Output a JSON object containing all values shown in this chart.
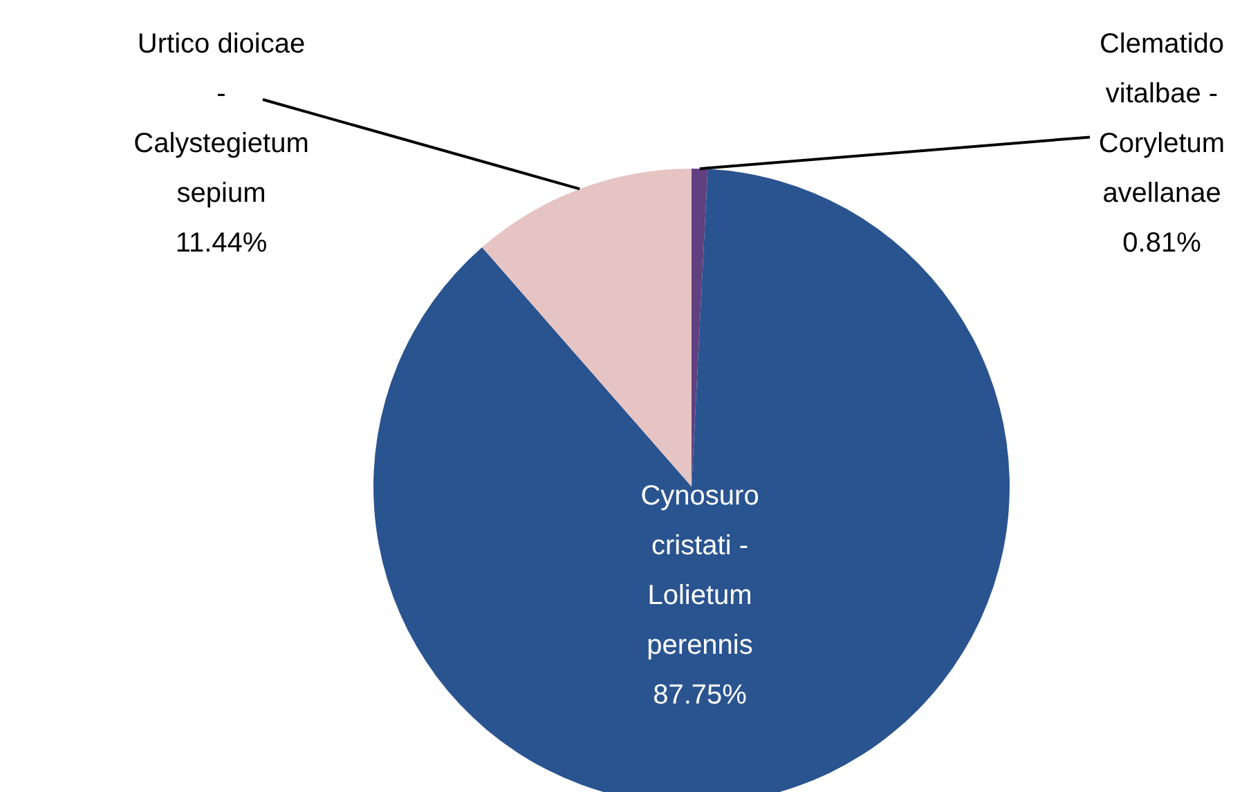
{
  "chart_data": {
    "type": "pie",
    "categories": [
      "Clematido vitalbae - Coryletum avellanae",
      "Cynosuro cristati - Lolietum perennis",
      "Urtico dioicae - Calystegietum sepium"
    ],
    "values": [
      0.81,
      87.75,
      11.44
    ],
    "colors": [
      "#60407f",
      "#2a5490",
      "#e6c4c4"
    ],
    "value_labels": [
      "0.81%",
      "87.75%",
      "11.44%"
    ]
  }
}
